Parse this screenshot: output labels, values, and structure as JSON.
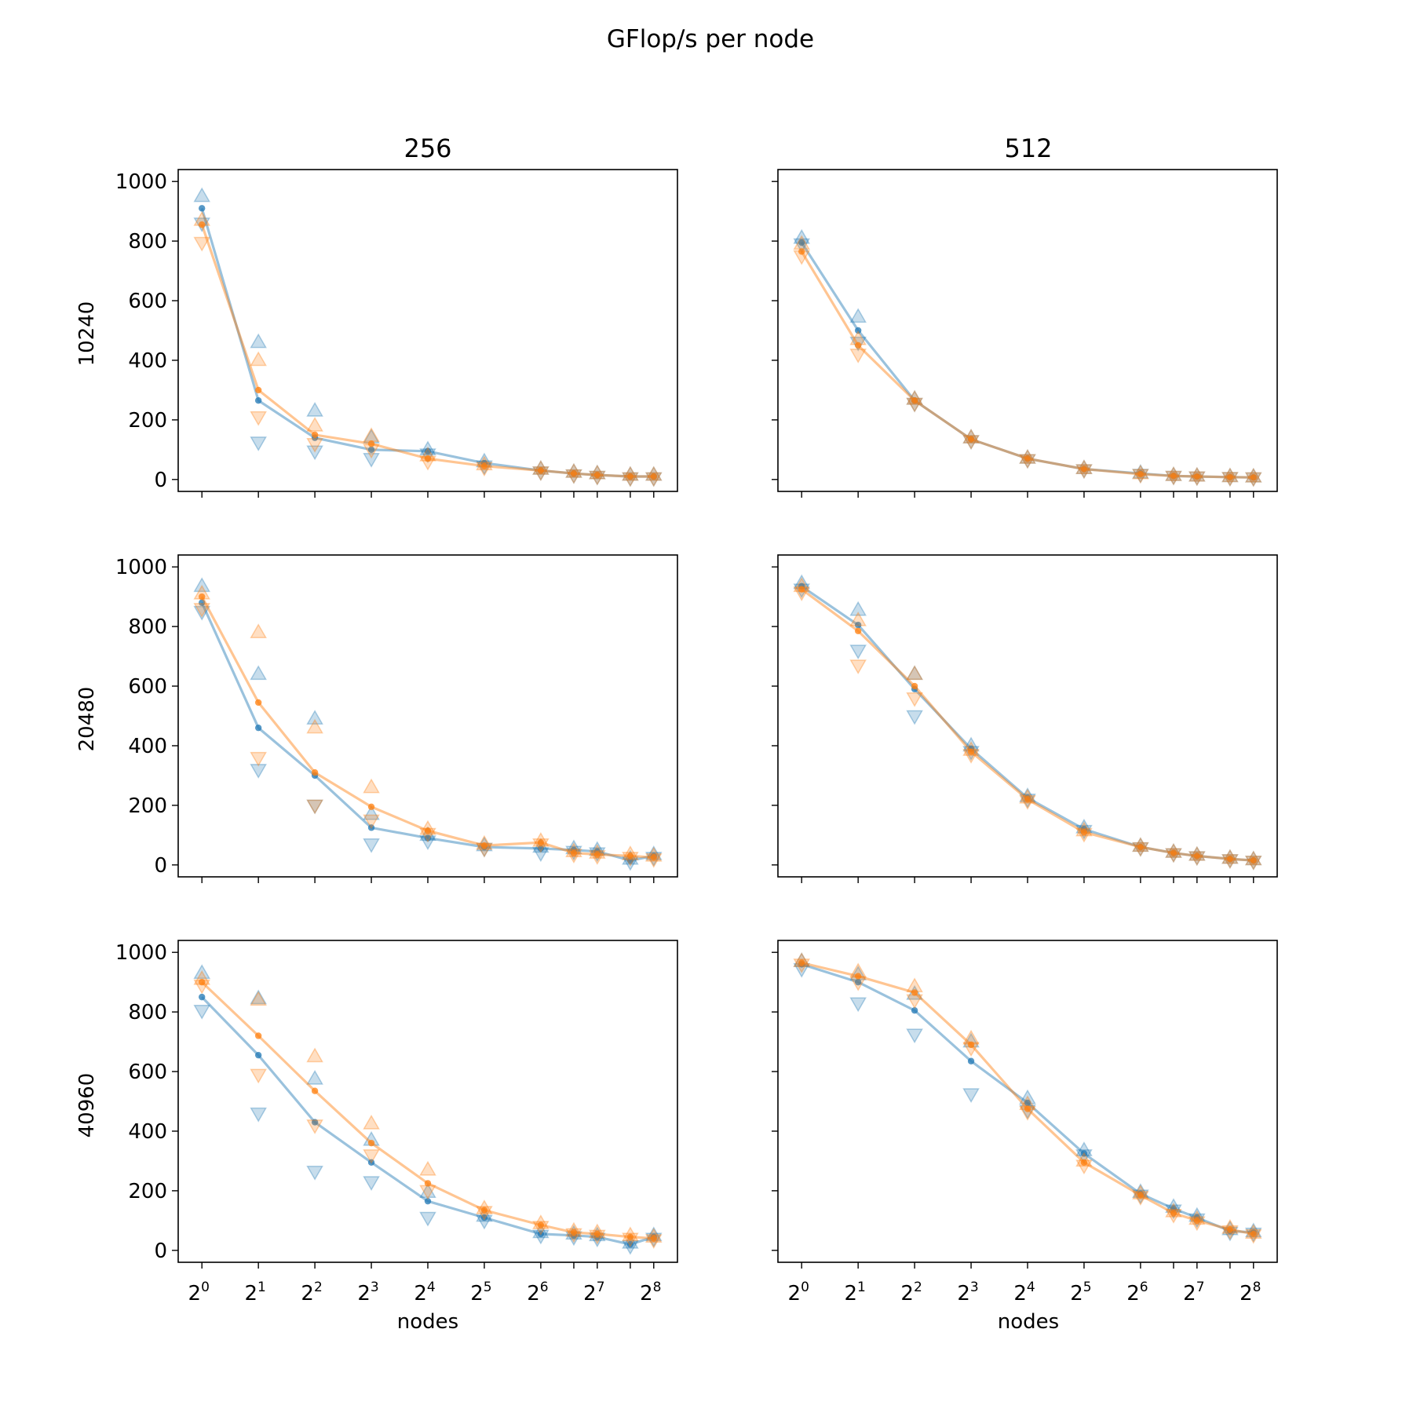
{
  "figure": {
    "suptitle": "GFlop/s per node",
    "columns": [
      "256",
      "512"
    ],
    "rows": [
      "10240",
      "20480",
      "40960"
    ],
    "xlabel": "nodes"
  },
  "colors": {
    "series_a": "#1f77b4",
    "series_b": "#ff7f0e"
  },
  "chart_data": [
    {
      "type": "line",
      "column": "256",
      "row": "10240",
      "x": [
        1,
        2,
        4,
        8,
        16,
        32,
        64,
        96,
        128,
        192,
        256
      ],
      "xscale": "log2",
      "ylim": [
        -40,
        1040
      ],
      "yticks": [
        0,
        200,
        400,
        600,
        800,
        1000
      ],
      "series": [
        {
          "mean": [
            910,
            265,
            140,
            100,
            95,
            55,
            30,
            20,
            15,
            10,
            10
          ],
          "max": [
            950,
            460,
            230,
            140,
            100,
            60,
            35,
            25,
            20,
            15,
            15
          ],
          "min": [
            860,
            125,
            95,
            70,
            85,
            45,
            25,
            15,
            10,
            5,
            5
          ]
        },
        {
          "mean": [
            855,
            300,
            150,
            120,
            70,
            45,
            30,
            20,
            15,
            10,
            10
          ],
          "max": [
            870,
            400,
            180,
            145,
            80,
            50,
            35,
            25,
            20,
            15,
            15
          ],
          "min": [
            795,
            210,
            120,
            100,
            60,
            40,
            25,
            15,
            10,
            5,
            5
          ]
        }
      ]
    },
    {
      "type": "line",
      "column": "512",
      "row": "10240",
      "x": [
        1,
        2,
        4,
        8,
        16,
        32,
        64,
        96,
        128,
        192,
        256
      ],
      "xscale": "log2",
      "ylim": [
        -40,
        1040
      ],
      "yticks": [
        0,
        200,
        400,
        600,
        800,
        1000
      ],
      "series": [
        {
          "mean": [
            795,
            500,
            265,
            135,
            70,
            35,
            20,
            12,
            10,
            8,
            7
          ],
          "max": [
            810,
            545,
            270,
            140,
            72,
            37,
            22,
            14,
            12,
            10,
            9
          ],
          "min": [
            790,
            460,
            255,
            130,
            66,
            32,
            17,
            10,
            8,
            6,
            5
          ]
        },
        {
          "mean": [
            765,
            450,
            265,
            135,
            70,
            35,
            18,
            12,
            10,
            8,
            7
          ],
          "max": [
            790,
            470,
            270,
            140,
            72,
            37,
            20,
            14,
            12,
            10,
            9
          ],
          "min": [
            750,
            420,
            255,
            130,
            66,
            32,
            16,
            10,
            8,
            6,
            5
          ]
        }
      ]
    },
    {
      "type": "line",
      "column": "256",
      "row": "20480",
      "x": [
        1,
        2,
        4,
        8,
        16,
        32,
        64,
        96,
        128,
        192,
        256
      ],
      "xscale": "log2",
      "ylim": [
        -40,
        1040
      ],
      "yticks": [
        0,
        200,
        400,
        600,
        800,
        1000
      ],
      "series": [
        {
          "mean": [
            880,
            460,
            300,
            125,
            90,
            60,
            55,
            50,
            45,
            15,
            30
          ],
          "max": [
            935,
            640,
            490,
            170,
            100,
            65,
            60,
            55,
            50,
            20,
            35
          ],
          "min": [
            850,
            320,
            200,
            70,
            80,
            55,
            40,
            45,
            40,
            10,
            25
          ]
        },
        {
          "mean": [
            900,
            545,
            310,
            195,
            115,
            65,
            75,
            40,
            35,
            30,
            25
          ],
          "max": [
            910,
            780,
            460,
            260,
            120,
            70,
            80,
            45,
            40,
            35,
            30
          ],
          "min": [
            860,
            360,
            200,
            150,
            105,
            55,
            70,
            35,
            30,
            25,
            20
          ]
        }
      ]
    },
    {
      "type": "line",
      "column": "512",
      "row": "20480",
      "x": [
        1,
        2,
        4,
        8,
        16,
        32,
        64,
        96,
        128,
        192,
        256
      ],
      "xscale": "log2",
      "ylim": [
        -40,
        1040
      ],
      "yticks": [
        0,
        200,
        400,
        600,
        800,
        1000
      ],
      "series": [
        {
          "mean": [
            935,
            805,
            590,
            390,
            225,
            120,
            60,
            40,
            30,
            20,
            15
          ],
          "max": [
            945,
            855,
            640,
            400,
            230,
            125,
            63,
            43,
            33,
            23,
            18
          ],
          "min": [
            925,
            720,
            500,
            380,
            220,
            115,
            57,
            37,
            27,
            17,
            12
          ]
        },
        {
          "mean": [
            925,
            785,
            600,
            380,
            220,
            110,
            60,
            40,
            30,
            20,
            15
          ],
          "max": [
            935,
            820,
            640,
            385,
            225,
            115,
            63,
            43,
            33,
            23,
            18
          ],
          "min": [
            915,
            670,
            560,
            370,
            215,
            105,
            57,
            37,
            27,
            17,
            12
          ]
        }
      ]
    },
    {
      "type": "line",
      "column": "256",
      "row": "40960",
      "x": [
        1,
        2,
        4,
        8,
        16,
        32,
        64,
        96,
        128,
        192,
        256
      ],
      "xscale": "log2",
      "ylim": [
        -40,
        1040
      ],
      "yticks": [
        0,
        200,
        400,
        600,
        800,
        1000
      ],
      "series": [
        {
          "mean": [
            850,
            655,
            430,
            295,
            165,
            110,
            55,
            50,
            45,
            20,
            45
          ],
          "max": [
            930,
            845,
            575,
            370,
            195,
            115,
            60,
            55,
            50,
            25,
            50
          ],
          "min": [
            805,
            460,
            265,
            230,
            110,
            100,
            50,
            45,
            40,
            15,
            40
          ]
        },
        {
          "mean": [
            900,
            720,
            535,
            360,
            225,
            135,
            85,
            60,
            55,
            45,
            40
          ],
          "max": [
            910,
            840,
            650,
            425,
            270,
            140,
            90,
            65,
            60,
            50,
            45
          ],
          "min": [
            890,
            590,
            420,
            320,
            200,
            130,
            80,
            55,
            50,
            40,
            35
          ]
        }
      ]
    },
    {
      "type": "line",
      "column": "512",
      "row": "40960",
      "x": [
        1,
        2,
        4,
        8,
        16,
        32,
        64,
        96,
        128,
        192,
        256
      ],
      "xscale": "log2",
      "ylim": [
        -40,
        1040
      ],
      "yticks": [
        0,
        200,
        400,
        600,
        800,
        1000
      ],
      "series": [
        {
          "mean": [
            960,
            900,
            805,
            635,
            495,
            325,
            190,
            140,
            110,
            65,
            60
          ],
          "max": [
            970,
            925,
            860,
            700,
            510,
            335,
            195,
            145,
            115,
            70,
            63
          ],
          "min": [
            945,
            830,
            725,
            525,
            470,
            320,
            185,
            135,
            105,
            60,
            57
          ]
        },
        {
          "mean": [
            965,
            920,
            865,
            690,
            475,
            295,
            185,
            125,
            100,
            70,
            55
          ],
          "max": [
            970,
            935,
            885,
            710,
            490,
            300,
            190,
            130,
            105,
            75,
            58
          ],
          "min": [
            960,
            900,
            840,
            680,
            465,
            285,
            180,
            120,
            95,
            65,
            52
          ]
        }
      ]
    }
  ]
}
